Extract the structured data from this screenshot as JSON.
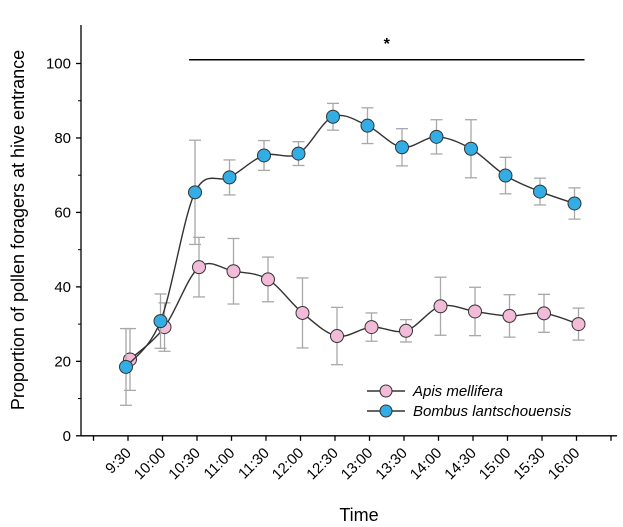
{
  "chart_data": {
    "type": "line",
    "title": "",
    "xlabel": "Time",
    "ylabel": "Proportion of pollen foragers at hive entrance",
    "x": [
      "9:30",
      "10:00",
      "10:30",
      "11:00",
      "11:30",
      "12:00",
      "12:30",
      "13:00",
      "13:30",
      "14:00",
      "14:30",
      "15:00",
      "15:30",
      "16:00"
    ],
    "ylim": [
      0,
      100
    ],
    "yticks": [
      0,
      20,
      40,
      60,
      80,
      100
    ],
    "grid": false,
    "legend": "bottom-right",
    "series": [
      {
        "name": "Apis mellifera",
        "color": "#f2bcd8",
        "values": [
          20.5,
          29.2,
          45.3,
          44.2,
          42.0,
          33.0,
          26.8,
          29.2,
          28.2,
          34.8,
          33.4,
          32.2,
          32.9,
          30.0
        ],
        "error": [
          8.3,
          6.5,
          8.0,
          8.8,
          6.0,
          9.4,
          7.7,
          3.8,
          3.0,
          7.8,
          6.5,
          5.7,
          5.1,
          4.3
        ]
      },
      {
        "name": "Bombus lantschouensis",
        "color": "#33aee5",
        "values": [
          18.5,
          30.8,
          65.4,
          69.4,
          75.3,
          75.8,
          85.7,
          83.3,
          77.5,
          80.3,
          77.1,
          69.9,
          65.6,
          62.4
        ],
        "error": [
          10.3,
          7.3,
          14.0,
          4.7,
          4.0,
          3.2,
          3.6,
          4.8,
          5.0,
          4.6,
          7.8,
          4.9,
          3.6,
          4.2
        ]
      }
    ],
    "annotations": [
      {
        "text": "*",
        "x_from": "10:30",
        "x_to": "16:00",
        "y": 101
      }
    ]
  }
}
